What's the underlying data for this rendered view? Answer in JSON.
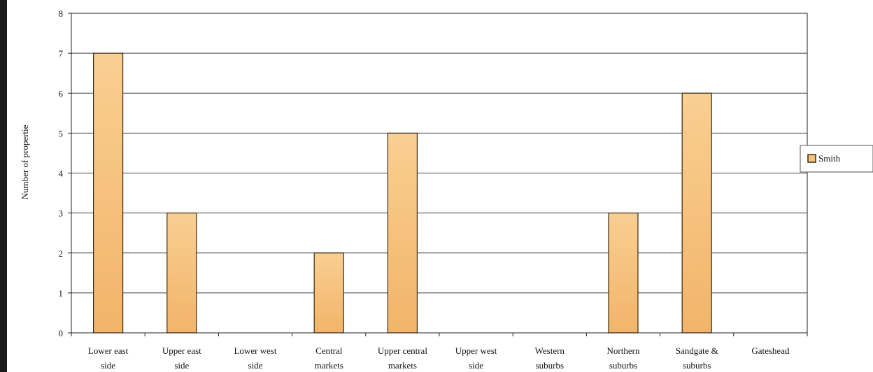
{
  "chart_data": {
    "type": "bar",
    "title": "",
    "xlabel": "",
    "ylabel": "Number of propertie",
    "ylim": [
      0,
      8
    ],
    "yticks": [
      0,
      1,
      2,
      3,
      4,
      5,
      6,
      7,
      8
    ],
    "grid": true,
    "legend_position": "right",
    "categories": [
      [
        "Lower east",
        "side"
      ],
      [
        "Upper east",
        "side"
      ],
      [
        "Lower west",
        "side"
      ],
      [
        "Central",
        "markets"
      ],
      [
        "Upper central",
        "markets"
      ],
      [
        "Upper west",
        "side"
      ],
      [
        "Western",
        "suburbs"
      ],
      [
        "Northern",
        "suburbs"
      ],
      [
        "Sandgate &",
        "suburbs"
      ],
      [
        "Gateshead"
      ]
    ],
    "series": [
      {
        "name": "Smith",
        "values": [
          7,
          3,
          0,
          2,
          5,
          0,
          0,
          3,
          6,
          0
        ]
      }
    ]
  },
  "colors": {
    "bar_fill": "#f6c37f",
    "bar_stroke": "#3a2a14",
    "grid": "#444444",
    "axis": "#222222"
  }
}
